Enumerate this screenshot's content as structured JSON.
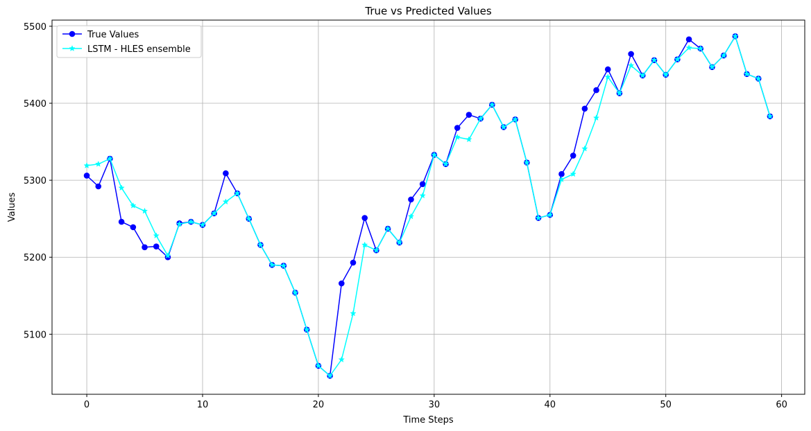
{
  "chart_data": {
    "type": "line",
    "title": "True vs Predicted Values",
    "xlabel": "Time Steps",
    "ylabel": "Values",
    "xlim": [
      -3,
      62
    ],
    "ylim": [
      5022,
      5508
    ],
    "xticks": [
      0,
      10,
      20,
      30,
      40,
      50,
      60
    ],
    "yticks": [
      5100,
      5200,
      5300,
      5400,
      5500
    ],
    "grid": true,
    "legend_position": "upper-left",
    "series": [
      {
        "name": "True Values",
        "color": "#0000ff",
        "marker": "circle",
        "values": [
          5306,
          5292,
          5328,
          5246,
          5239,
          5213,
          5214,
          5200,
          5244,
          5246,
          5242,
          5257,
          5309,
          5283,
          5250,
          5216,
          5190,
          5189,
          5154,
          5106,
          5059,
          5046,
          5166,
          5193,
          5251,
          5209,
          5237,
          5219,
          5275,
          5295,
          5333,
          5321,
          5368,
          5385,
          5380,
          5398,
          5369,
          5379,
          5323,
          5251,
          5255,
          5308,
          5332,
          5393,
          5417,
          5444,
          5413,
          5464,
          5436,
          5456,
          5437,
          5457,
          5483,
          5471,
          5447,
          5462,
          5487,
          5438,
          5432,
          5383
        ]
      },
      {
        "name": "LSTM - HLES ensemble",
        "color": "#00ffff",
        "marker": "star",
        "values": [
          5319,
          5321,
          5328,
          5290,
          5267,
          5260,
          5228,
          5202,
          5243,
          5246,
          5242,
          5257,
          5272,
          5283,
          5250,
          5216,
          5190,
          5189,
          5154,
          5106,
          5059,
          5046,
          5067,
          5127,
          5216,
          5209,
          5237,
          5219,
          5253,
          5280,
          5333,
          5321,
          5356,
          5353,
          5380,
          5398,
          5369,
          5379,
          5323,
          5251,
          5255,
          5301,
          5308,
          5341,
          5381,
          5434,
          5413,
          5449,
          5436,
          5456,
          5437,
          5457,
          5472,
          5471,
          5447,
          5462,
          5487,
          5438,
          5432,
          5383
        ]
      }
    ]
  }
}
